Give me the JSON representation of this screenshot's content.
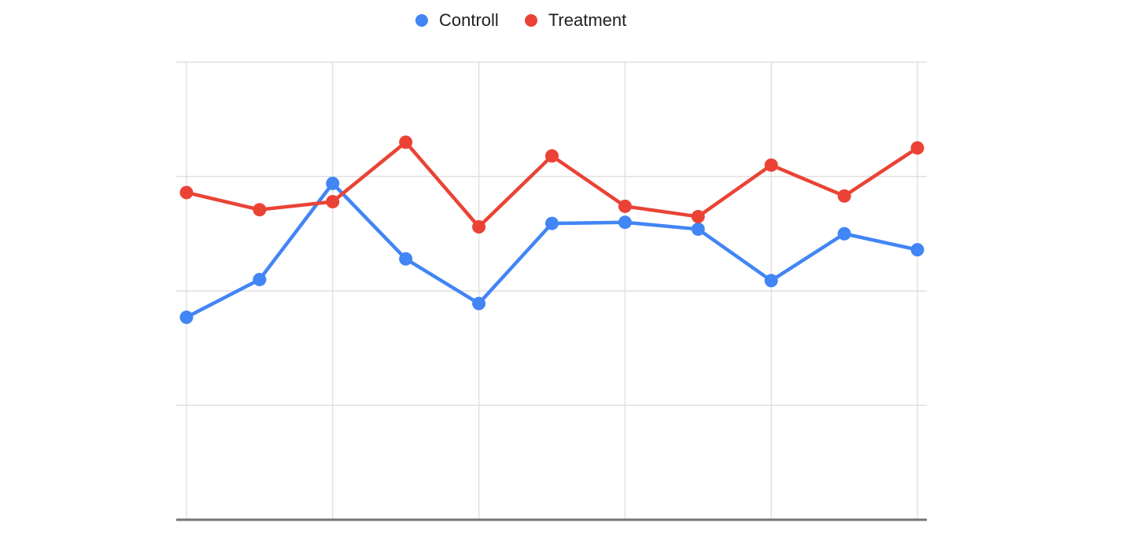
{
  "page": {
    "background": "#ffffff"
  },
  "colors": {
    "grid": "#e0e0e0",
    "axis": "#757575",
    "legend_text": "#212121",
    "background": "#ffffff"
  },
  "chart_data": {
    "type": "line",
    "title": "",
    "legend_position": "top-center",
    "grid": true,
    "axes_tick_labels_visible": false,
    "value_note": "axes have no visible tick labels; y values estimated in gridline units (baseline 0, four gridlines at 1,2,3,4)",
    "x": [
      1,
      2,
      3,
      4,
      5,
      6,
      7,
      8,
      9,
      10,
      11
    ],
    "ylim": [
      0,
      4
    ],
    "y_gridlines": [
      1,
      2,
      3,
      4
    ],
    "x_gridline_indices": [
      0,
      2,
      4,
      6,
      8,
      10
    ],
    "marker": "circle",
    "series": [
      {
        "name": "Controll",
        "color": "#4285f4",
        "values": [
          1.77,
          2.1,
          2.94,
          2.28,
          1.89,
          2.59,
          2.6,
          2.54,
          2.09,
          2.5,
          2.36
        ]
      },
      {
        "name": "Treatment",
        "color": "#ea4335",
        "values": [
          2.86,
          2.71,
          2.78,
          3.3,
          2.56,
          3.18,
          2.74,
          2.65,
          3.1,
          2.83,
          3.25
        ]
      }
    ]
  }
}
